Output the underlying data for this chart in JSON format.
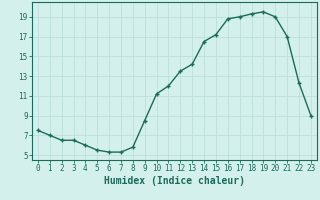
{
  "x_values": [
    0,
    1,
    2,
    3,
    4,
    5,
    6,
    7,
    8,
    9,
    10,
    11,
    12,
    13,
    14,
    15,
    16,
    17,
    18,
    19,
    20,
    21,
    22,
    23
  ],
  "y_values": [
    7.5,
    7.0,
    6.5,
    6.5,
    6.0,
    5.5,
    5.3,
    5.3,
    5.8,
    8.5,
    11.2,
    12.0,
    13.5,
    14.2,
    16.5,
    17.2,
    18.8,
    19.0,
    19.3,
    19.5,
    19.0,
    17.0,
    12.3,
    9.0
  ],
  "xlabel": "Humidex (Indice chaleur)",
  "xlim": [
    -0.5,
    23.5
  ],
  "ylim": [
    4.5,
    20.5
  ],
  "yticks": [
    5,
    7,
    9,
    11,
    13,
    15,
    17,
    19
  ],
  "xticks": [
    0,
    1,
    2,
    3,
    4,
    5,
    6,
    7,
    8,
    9,
    10,
    11,
    12,
    13,
    14,
    15,
    16,
    17,
    18,
    19,
    20,
    21,
    22,
    23
  ],
  "line_color": "#1a6b5a",
  "marker_color": "#1a6b5a",
  "bg_color": "#d4f0ec",
  "grid_color": "#b8ddd7",
  "border_color": "#1a6b5a",
  "tick_label_fontsize": 5.5,
  "xlabel_fontsize": 7.0
}
